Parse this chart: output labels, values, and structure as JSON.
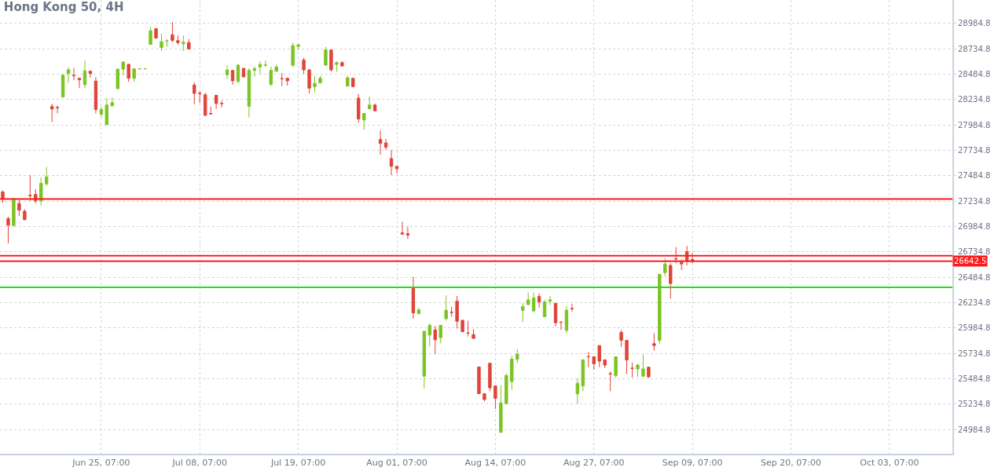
{
  "chart_data": {
    "type": "candlestick",
    "title": "Hong Kong 50, 4H",
    "categories": [
      null,
      null,
      null,
      null,
      null,
      null,
      null,
      null,
      null,
      null,
      null,
      null,
      null,
      null,
      null,
      null,
      null,
      null,
      "Jun 25, 07:00",
      null,
      null,
      null,
      null,
      null,
      null,
      null,
      null,
      null,
      null,
      null,
      null,
      null,
      null,
      null,
      null,
      null,
      "Jul 08, 07:00",
      null,
      null,
      null,
      null,
      null,
      null,
      null,
      null,
      null,
      null,
      null,
      null,
      null,
      null,
      null,
      null,
      null,
      "Jul 19, 07:00",
      null,
      null,
      null,
      null,
      null,
      null,
      null,
      null,
      null,
      null,
      null,
      null,
      null,
      null,
      null,
      null,
      null,
      "Aug 01, 07:00",
      null,
      null,
      null,
      null,
      null,
      null,
      null,
      null,
      null,
      null,
      null,
      null,
      null,
      null,
      null,
      null,
      null,
      "Aug 14, 07:00",
      null,
      null,
      null,
      null,
      null,
      null,
      null,
      null,
      null,
      null,
      null,
      null,
      null,
      null,
      null,
      null,
      null,
      "Aug 27, 07:00",
      null,
      null,
      null,
      null,
      null,
      null,
      null,
      null,
      null,
      null,
      null,
      null,
      null,
      null,
      null,
      null,
      null,
      "Sep 09, 07:00",
      null,
      null,
      null,
      null,
      null,
      null,
      null,
      null,
      null,
      null,
      null,
      null,
      null,
      null,
      null,
      null,
      null,
      "Sep 20, 07:00",
      null,
      null,
      null,
      null,
      null,
      null,
      null,
      null,
      null,
      null,
      null,
      null,
      null,
      null,
      null,
      null,
      null,
      "Oct 03, 07:00",
      null,
      null,
      null,
      null,
      null,
      null,
      null,
      null,
      null,
      null,
      null
    ],
    "ohlc": [
      [
        27325,
        27340,
        27217,
        27256
      ],
      [
        27063,
        27081,
        26819,
        26998
      ],
      [
        26995,
        27269,
        26986,
        27251
      ],
      [
        27212,
        27251,
        27089,
        27146
      ],
      [
        27135,
        27156,
        27045,
        27053
      ],
      [
        27292,
        27490,
        27238,
        27287
      ],
      [
        27300,
        27354,
        27212,
        27238
      ],
      [
        27238,
        27469,
        27192,
        27410
      ],
      [
        27405,
        27572,
        27387,
        27474
      ],
      [
        28168,
        28194,
        28014,
        28142
      ],
      [
        28158,
        28176,
        28099,
        28156
      ],
      [
        28260,
        28480,
        28255,
        28476
      ],
      [
        28492,
        28553,
        28399,
        28528
      ],
      [
        28473,
        28548,
        28425,
        28471
      ],
      [
        28445,
        28450,
        28348,
        28430
      ],
      [
        28381,
        28620,
        28348,
        28517
      ],
      [
        28515,
        28520,
        28451,
        28492
      ],
      [
        28417,
        28456,
        28099,
        28137
      ],
      [
        28091,
        28168,
        28060,
        28137
      ],
      [
        27988,
        28250,
        27983,
        28181
      ],
      [
        28173,
        28255,
        28168,
        28204
      ],
      [
        28343,
        28540,
        28338,
        28535
      ],
      [
        28535,
        28610,
        28476,
        28605
      ],
      [
        28582,
        28587,
        28409,
        28445
      ],
      [
        28445,
        28540,
        28409,
        28538
      ],
      [
        28538,
        28540,
        28536,
        28538
      ],
      [
        28538,
        28540,
        28536,
        28538
      ],
      [
        28779,
        28946,
        28779,
        28913
      ],
      [
        28934,
        28939,
        28836,
        28841
      ],
      [
        28749,
        28882,
        28713,
        28805
      ],
      [
        28810,
        28831,
        28754,
        28812
      ],
      [
        28874,
        28998,
        28800,
        28818
      ],
      [
        28815,
        28867,
        28774,
        28797
      ],
      [
        28785,
        28867,
        28713,
        28800
      ],
      [
        28797,
        28831,
        28728,
        28733
      ],
      [
        28379,
        28404,
        28189,
        28296
      ],
      [
        28298,
        28317,
        28201,
        28294
      ],
      [
        28283,
        28301,
        28073,
        28080
      ],
      [
        28098,
        28168,
        28090,
        28094
      ],
      [
        28278,
        28280,
        28142,
        28196
      ],
      [
        28198,
        28227,
        28158,
        28195
      ],
      [
        28479,
        28574,
        28440,
        28527
      ],
      [
        28522,
        28525,
        28381,
        28420
      ],
      [
        28414,
        28587,
        28394,
        28574
      ],
      [
        28543,
        28545,
        28455,
        28458
      ],
      [
        28170,
        28543,
        28060,
        28522
      ],
      [
        28522,
        28561,
        28458,
        28540
      ],
      [
        28556,
        28612,
        28484,
        28581
      ],
      [
        28574,
        28620,
        28556,
        28576
      ],
      [
        28386,
        28561,
        28368,
        28522
      ],
      [
        28515,
        28579,
        28504,
        28556
      ],
      [
        28442,
        28497,
        28368,
        28440
      ],
      [
        28445,
        28447,
        28373,
        28420
      ],
      [
        28574,
        28797,
        28553,
        28766
      ],
      [
        28759,
        28779,
        28723,
        28774
      ],
      [
        28625,
        28646,
        28489,
        28528
      ],
      [
        28528,
        28530,
        28296,
        28348
      ],
      [
        28363,
        28471,
        28304,
        28394
      ],
      [
        28399,
        28471,
        28397,
        28445
      ],
      [
        28574,
        28754,
        28572,
        28723
      ],
      [
        28723,
        28725,
        28510,
        28528
      ],
      [
        28581,
        28612,
        28510,
        28599
      ],
      [
        28599,
        28612,
        28561,
        28566
      ],
      [
        28368,
        28471,
        28366,
        28450
      ],
      [
        28445,
        28447,
        28355,
        28363
      ],
      [
        28250,
        28291,
        28008,
        28044
      ],
      [
        28034,
        28098,
        27936,
        28098
      ],
      [
        28145,
        28265,
        28137,
        28181
      ],
      [
        28181,
        28196,
        28124,
        28124
      ],
      [
        27842,
        27931,
        27693,
        27803
      ],
      [
        27808,
        27847,
        27739,
        27765
      ],
      [
        27654,
        27739,
        27490,
        27577
      ],
      [
        27577,
        27579,
        27508,
        27554
      ],
      [
        26922,
        27032,
        26909,
        26909
      ],
      [
        26914,
        26981,
        26863,
        26899
      ],
      [
        26375,
        26488,
        26077,
        26133
      ],
      [
        26126,
        26185,
        26120,
        26164
      ],
      [
        25511,
        25953,
        25388,
        25953
      ],
      [
        25915,
        26030,
        25804,
        26010
      ],
      [
        25966,
        26005,
        25727,
        25869
      ],
      [
        25889,
        26010,
        25833,
        26010
      ],
      [
        26077,
        26305,
        26056,
        26159
      ],
      [
        26141,
        26192,
        26095,
        26138
      ],
      [
        26249,
        26300,
        25979,
        26051
      ],
      [
        26061,
        26063,
        25948,
        25948
      ],
      [
        25936,
        26056,
        25902,
        25933
      ],
      [
        25920,
        25974,
        25882,
        25882
      ],
      [
        25601,
        25603,
        25337,
        25337
      ],
      [
        25337,
        25339,
        25260,
        25280
      ],
      [
        25637,
        25639,
        25362,
        25396
      ],
      [
        25414,
        25419,
        25188,
        25291
      ],
      [
        24957,
        25419,
        24957,
        25247
      ],
      [
        25239,
        25537,
        25239,
        25517
      ],
      [
        25458,
        25714,
        25375,
        25678
      ],
      [
        25676,
        25779,
        25637,
        25727
      ],
      [
        26159,
        26231,
        26043,
        26197
      ],
      [
        26215,
        26334,
        26215,
        26262
      ],
      [
        26154,
        26334,
        26138,
        26280
      ],
      [
        26295,
        26326,
        26185,
        26241
      ],
      [
        26095,
        26262,
        26095,
        26241
      ],
      [
        26249,
        26300,
        26210,
        26262
      ],
      [
        26228,
        26230,
        26000,
        26036
      ],
      [
        26044,
        26046,
        25966,
        26041
      ],
      [
        25961,
        26197,
        25933,
        26159
      ],
      [
        26177,
        26223,
        26146,
        26174
      ],
      [
        25337,
        25491,
        25239,
        25440
      ],
      [
        25414,
        25676,
        25362,
        25671
      ],
      [
        25703,
        25748,
        25599,
        25701
      ],
      [
        25701,
        25703,
        25573,
        25632
      ],
      [
        25812,
        25814,
        25599,
        25658
      ],
      [
        25671,
        25676,
        25589,
        25619
      ],
      [
        25535,
        25555,
        25362,
        25533
      ],
      [
        25517,
        25701,
        25496,
        25701
      ],
      [
        25941,
        25966,
        25799,
        25863
      ],
      [
        25863,
        25865,
        25530,
        25671
      ],
      [
        25589,
        25645,
        25496,
        25587
      ],
      [
        25581,
        25632,
        25504,
        25619
      ],
      [
        25509,
        25722,
        25504,
        25581
      ],
      [
        25599,
        25601,
        25491,
        25504
      ],
      [
        25830,
        25933,
        25761,
        25812
      ],
      [
        25863,
        26513,
        25830,
        26513
      ],
      [
        26531,
        26673,
        26493,
        26616
      ],
      [
        26601,
        26621,
        26274,
        26423
      ],
      [
        26668,
        26781,
        26621,
        26665
      ],
      [
        26631,
        26660,
        26557,
        26616
      ],
      [
        26737,
        26794,
        26601,
        26647
      ],
      [
        26660,
        26724,
        26621,
        26642.5
      ],
      null,
      null,
      null,
      null,
      null,
      null,
      null,
      null,
      null,
      null,
      null,
      null,
      null,
      null,
      null,
      null,
      null,
      null,
      null,
      null,
      null,
      null,
      null,
      null,
      null,
      null,
      null,
      null,
      null,
      null,
      null,
      null,
      null,
      null,
      null,
      null,
      null,
      null,
      null,
      null,
      null,
      null,
      null,
      null,
      null,
      null,
      null
    ],
    "colors": [
      "#e0453a",
      "#e0453a",
      "#7cc424",
      "#e0453a",
      "#e0453a",
      "#e0453a",
      "#e0453a",
      "#7cc424",
      "#7cc424",
      "#e0453a",
      "#e0453a",
      "#7cc424",
      "#7cc424",
      "#e0453a",
      "#e0453a",
      "#7cc424",
      "#e0453a",
      "#e0453a",
      "#7cc424",
      "#7cc424",
      "#7cc424",
      "#7cc424",
      "#7cc424",
      "#e0453a",
      "#7cc424",
      "#7cc424",
      "#7cc424",
      "#7cc424",
      "#e0453a",
      "#7cc424",
      "#7cc424",
      "#e0453a",
      "#e0453a",
      "#7cc424",
      "#e0453a",
      "#e0453a",
      "#e0453a",
      "#e0453a",
      "#e0453a",
      "#e0453a",
      "#e0453a",
      "#7cc424",
      "#e0453a",
      "#7cc424",
      "#e0453a",
      "#7cc424",
      "#7cc424",
      "#7cc424",
      "#7cc424",
      "#7cc424",
      "#7cc424",
      "#e0453a",
      "#e0453a",
      "#7cc424",
      "#7cc424",
      "#e0453a",
      "#e0453a",
      "#7cc424",
      "#7cc424",
      "#7cc424",
      "#e0453a",
      "#7cc424",
      "#e0453a",
      "#7cc424",
      "#e0453a",
      "#e0453a",
      "#7cc424",
      "#7cc424",
      "#e0453a",
      "#e0453a",
      "#e0453a",
      "#e0453a",
      "#e0453a",
      "#e0453a",
      "#e0453a",
      "#e0453a",
      "#7cc424",
      "#7cc424",
      "#7cc424",
      "#e0453a",
      "#7cc424",
      "#7cc424",
      "#e0453a",
      "#e0453a",
      "#e0453a",
      "#e0453a",
      "#e0453a",
      "#e0453a",
      "#e0453a",
      "#e0453a",
      "#e0453a",
      "#7cc424",
      "#7cc424",
      "#7cc424",
      "#7cc424",
      "#7cc424",
      "#7cc424",
      "#7cc424",
      "#e0453a",
      "#7cc424",
      "#7cc424",
      "#e0453a",
      "#e0453a",
      "#7cc424",
      "#e0453a",
      "#7cc424",
      "#7cc424",
      "#e0453a",
      "#e0453a",
      "#e0453a",
      "#e0453a",
      "#e0453a",
      "#7cc424",
      "#e0453a",
      "#e0453a",
      "#e0453a",
      "#7cc424",
      "#7cc424",
      "#e0453a",
      "#e0453a",
      "#7cc424",
      "#7cc424",
      "#e0453a",
      "#e0453a",
      "#e0453a",
      "#e0453a",
      "#e0453a",
      null,
      null,
      null,
      null,
      null,
      null,
      null,
      null,
      null,
      null,
      null,
      null,
      null,
      null,
      null,
      null,
      null,
      null,
      null,
      null,
      null,
      null,
      null,
      null,
      null,
      null,
      null,
      null,
      null,
      null,
      null,
      null,
      null,
      null,
      null,
      null,
      null,
      null,
      null,
      null,
      null,
      null,
      null,
      null,
      null,
      null,
      null
    ],
    "ylim": [
      24746,
      29216
    ],
    "yticks": [
      24984.8,
      25234.8,
      25484.8,
      25734.8,
      25984.8,
      26234.8,
      26484.8,
      26734.8,
      26984.8,
      27234.8,
      27484.8,
      27734.8,
      27984.8,
      28234.8,
      28484.8,
      28734.8,
      28984.8
    ],
    "ref_lines": [
      {
        "axis": "y",
        "value": 27256,
        "color": "#ff1a1a"
      },
      {
        "axis": "y",
        "value": 26697,
        "color": "#ff1a1a"
      },
      {
        "axis": "y",
        "value": 26642.5,
        "label": "26642.5",
        "color": "#ff1a1a"
      },
      {
        "axis": "y",
        "value": 26385,
        "color": "#22dd22"
      }
    ],
    "grid": true
  }
}
